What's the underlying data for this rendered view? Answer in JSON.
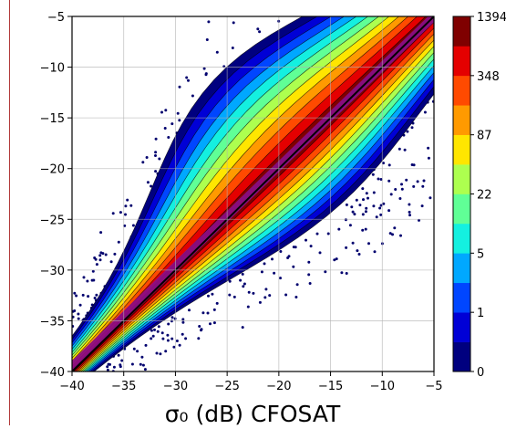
{
  "chart_data": {
    "type": "heatmap",
    "title": "",
    "xlabel": "σ₀ (dB) CFOSAT",
    "ylabel": "",
    "xlim": [
      -40,
      -5
    ],
    "ylim": [
      -40,
      -5
    ],
    "x_ticks": [
      -40,
      -35,
      -30,
      -25,
      -20,
      -15,
      -10,
      -5
    ],
    "y_ticks": [
      -40,
      -35,
      -30,
      -25,
      -20,
      -15,
      -10,
      -5
    ],
    "x_tick_labels": [
      "−40",
      "−35",
      "−30",
      "−25",
      "−20",
      "−15",
      "−10",
      "−5"
    ],
    "y_tick_labels": [
      "−40",
      "−35",
      "−30",
      "−25",
      "−20",
      "−15",
      "−10",
      "−5"
    ],
    "grid": true,
    "reference_line": {
      "x": [
        -40,
        -5
      ],
      "y": [
        -40,
        -5
      ],
      "color": "#000000"
    },
    "ridge_line": {
      "x": [
        -40,
        -5
      ],
      "y": [
        -39.5,
        -5
      ],
      "color": "#8a0f8a"
    },
    "density_peak": {
      "x": -19,
      "y": -18
    },
    "colorbar": {
      "position": "right",
      "tick_labels": [
        "0",
        "1",
        "5",
        "22",
        "87",
        "348",
        "1394"
      ],
      "colors": [
        "#00007f",
        "#0000d6",
        "#0046ff",
        "#00a8ff",
        "#14f0e0",
        "#60ff96",
        "#adff4f",
        "#ffe600",
        "#ff9a00",
        "#ff4a00",
        "#e40000",
        "#7f0000"
      ]
    }
  }
}
